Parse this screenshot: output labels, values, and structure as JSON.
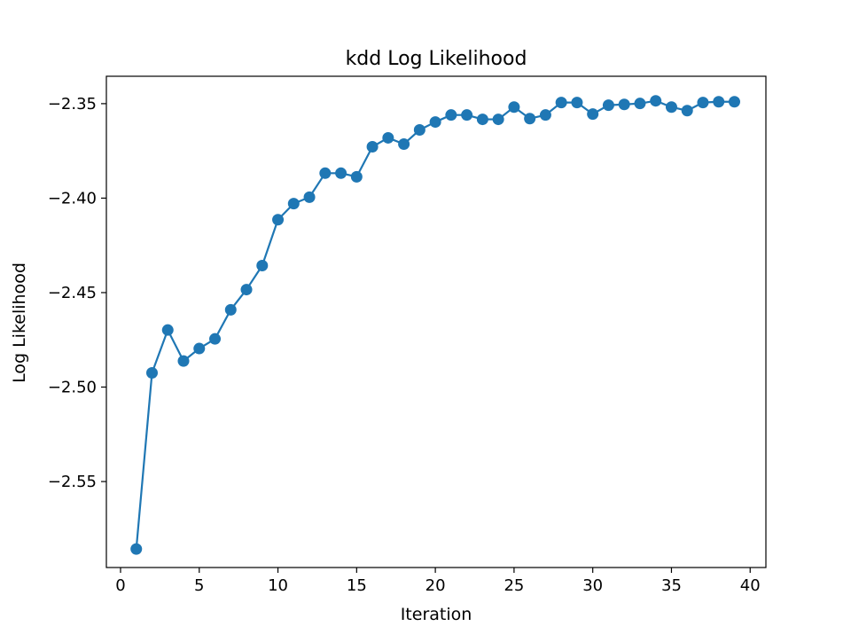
{
  "chart_data": {
    "type": "line",
    "title": "kdd Log Likelihood",
    "xlabel": "Iteration",
    "ylabel": "Log Likelihood",
    "xlim": [
      -0.9,
      41.0
    ],
    "ylim": [
      -2.5955,
      -2.3355
    ],
    "xticks": [
      0,
      5,
      10,
      15,
      20,
      25,
      30,
      35,
      40
    ],
    "xtick_labels": [
      "0",
      "5",
      "10",
      "15",
      "20",
      "25",
      "30",
      "35",
      "40"
    ],
    "yticks": [
      -2.35,
      -2.4,
      -2.45,
      -2.5,
      -2.55
    ],
    "ytick_labels": [
      "−2.35",
      "−2.40",
      "−2.45",
      "−2.50",
      "−2.55"
    ],
    "grid": false,
    "legend": "none",
    "series": [
      {
        "color": "#1f77b4",
        "marker": "circle",
        "x": [
          1,
          2,
          3,
          4,
          5,
          6,
          7,
          8,
          9,
          10,
          11,
          12,
          13,
          14,
          15,
          16,
          17,
          18,
          19,
          20,
          21,
          22,
          23,
          24,
          25,
          26,
          27,
          28,
          29,
          30,
          31,
          32,
          33,
          34,
          35,
          36,
          37,
          38,
          39
        ],
        "y": [
          -2.5857,
          -2.4925,
          -2.4698,
          -2.4862,
          -2.4796,
          -2.4745,
          -2.4591,
          -2.4484,
          -2.4357,
          -2.4114,
          -2.4029,
          -2.3995,
          -2.3868,
          -2.3868,
          -2.3887,
          -2.3728,
          -2.3681,
          -2.3714,
          -2.3639,
          -2.3597,
          -2.356,
          -2.356,
          -2.3583,
          -2.3583,
          -2.3518,
          -2.3579,
          -2.356,
          -2.3494,
          -2.3494,
          -2.3555,
          -2.3508,
          -2.3504,
          -2.3499,
          -2.3485,
          -2.3518,
          -2.3537,
          -2.3494,
          -2.349,
          -2.349
        ]
      }
    ]
  }
}
